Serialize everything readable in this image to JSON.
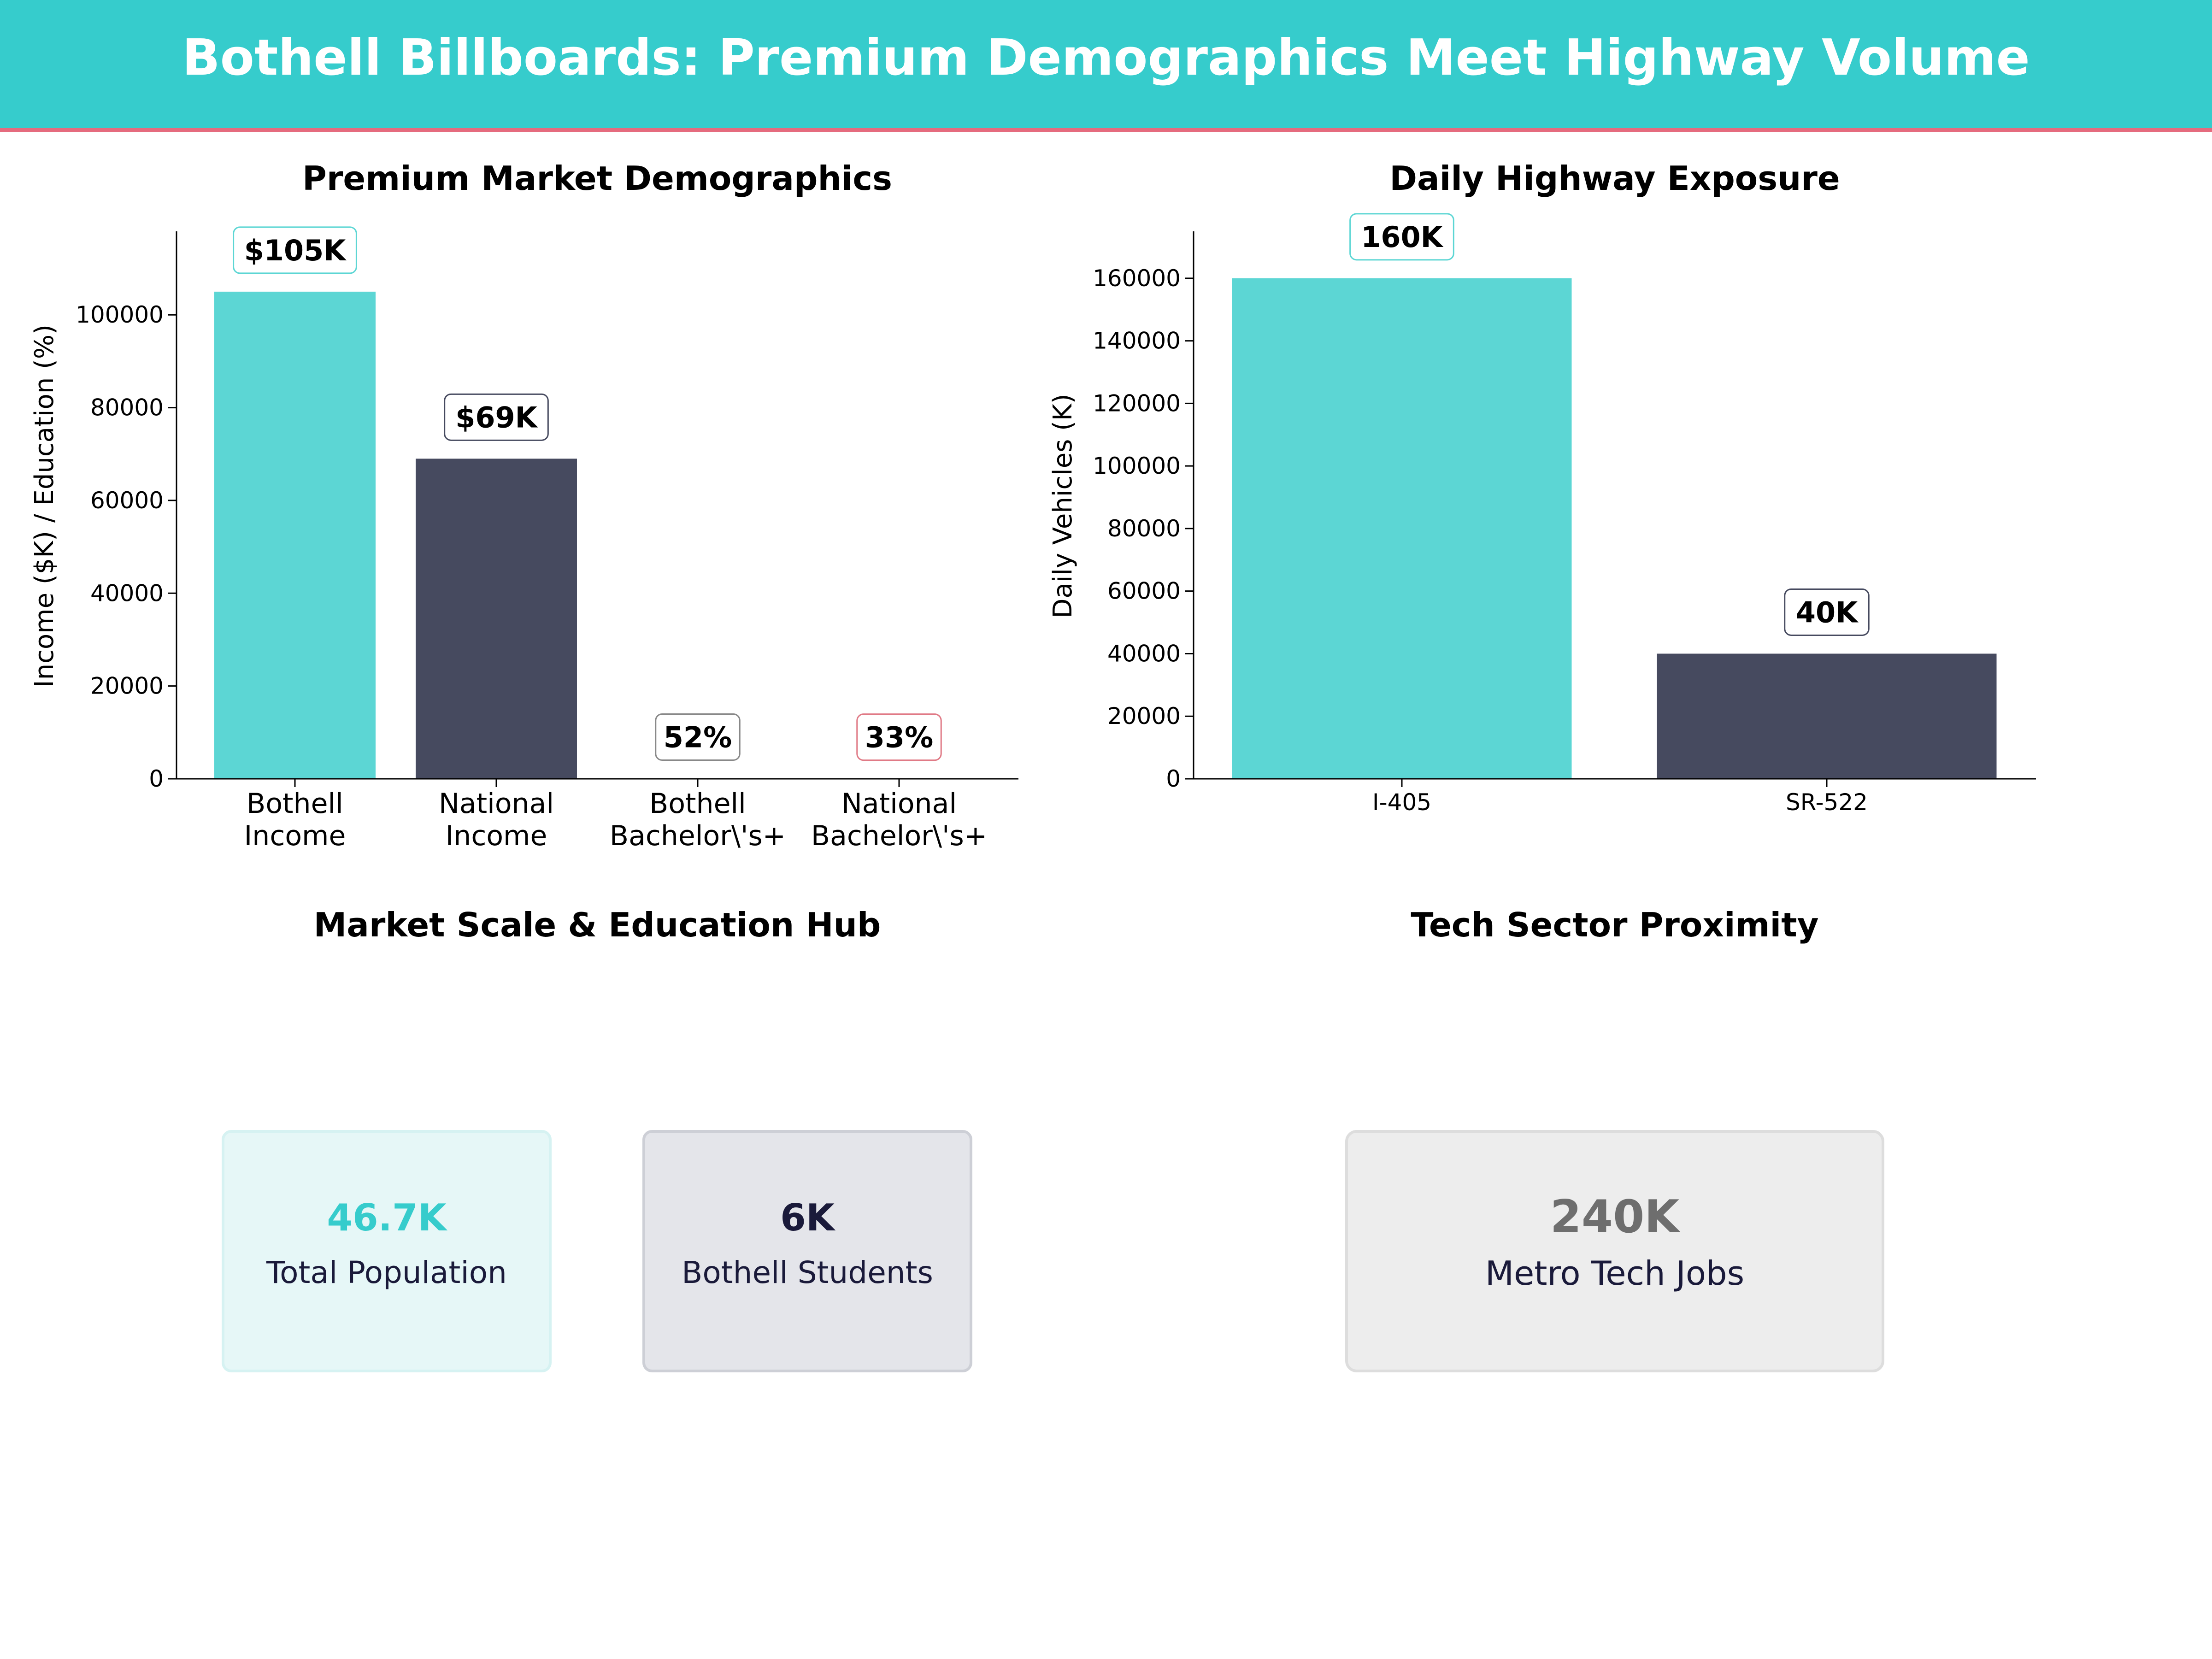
{
  "page": {
    "title": "Bothell Billboards: Premium Demographics Meet Highway Volume",
    "colors": {
      "header_bg": "#36CCCC",
      "header_rule": "#E56B7E",
      "teal": "#5CD6D4",
      "navy": "#464A5F",
      "coral": "#E07A86",
      "grey_label": "#6E6E6E",
      "stat_text": "#1A1A3A"
    }
  },
  "chart_data": [
    {
      "type": "bar",
      "title": "Premium Market Demographics",
      "xlabel": "",
      "ylabel": "Income ($K) / Education (%)",
      "categories": [
        "Bothell\nIncome",
        "National\nIncome",
        "Bothell\nBachelor\\'s+",
        "National\nBachelor\\'s+"
      ],
      "values": [
        105000,
        69000,
        52,
        33
      ],
      "data_labels": [
        "$105K",
        "$69K",
        "52%",
        "33%"
      ],
      "bar_colors": [
        "#5CD6D4",
        "#464A5F",
        "#5CD6D4",
        "#464A5F"
      ],
      "label_border_colors": [
        "#5CD6D4",
        "#464A5F",
        "#888888",
        "#E07A86"
      ],
      "yticks": [
        0,
        20000,
        40000,
        60000,
        80000,
        100000
      ],
      "ytick_labels": [
        "0",
        "20000",
        "40000",
        "60000",
        "80000",
        "100000"
      ],
      "ylim": [
        0,
        118000
      ],
      "grid": false
    },
    {
      "type": "bar",
      "title": "Daily Highway Exposure",
      "xlabel": "",
      "ylabel": "Daily Vehicles (K)",
      "categories": [
        "I-405",
        "SR-522"
      ],
      "values": [
        160000,
        40000
      ],
      "data_labels": [
        "160K",
        "40K"
      ],
      "bar_colors": [
        "#5CD6D4",
        "#464A5F"
      ],
      "label_border_colors": [
        "#5CD6D4",
        "#464A5F"
      ],
      "yticks": [
        0,
        20000,
        40000,
        60000,
        80000,
        100000,
        120000,
        140000,
        160000
      ],
      "ytick_labels": [
        "0",
        "20000",
        "40000",
        "60000",
        "80000",
        "100000",
        "120000",
        "140000",
        "160000"
      ],
      "ylim": [
        0,
        175000
      ],
      "grid": false
    }
  ],
  "stats": {
    "market_title": "Market Scale & Education Hub",
    "tech_title": "Tech Sector Proximity",
    "cards": [
      {
        "value": "46.7K",
        "label": "Total Population",
        "value_color": "#36CCCC",
        "bg": "#E6F7F7",
        "border": "#D6F2F2"
      },
      {
        "value": "6K",
        "label": "Bothell Students",
        "value_color": "#1A1A3A",
        "bg": "#E4E5EA",
        "border": "#CDCFD6"
      },
      {
        "value": "240K",
        "label": "Metro Tech Jobs",
        "value_color": "#6E6E6E",
        "bg": "#EDEDED",
        "border": "#DDDDDD"
      }
    ]
  }
}
